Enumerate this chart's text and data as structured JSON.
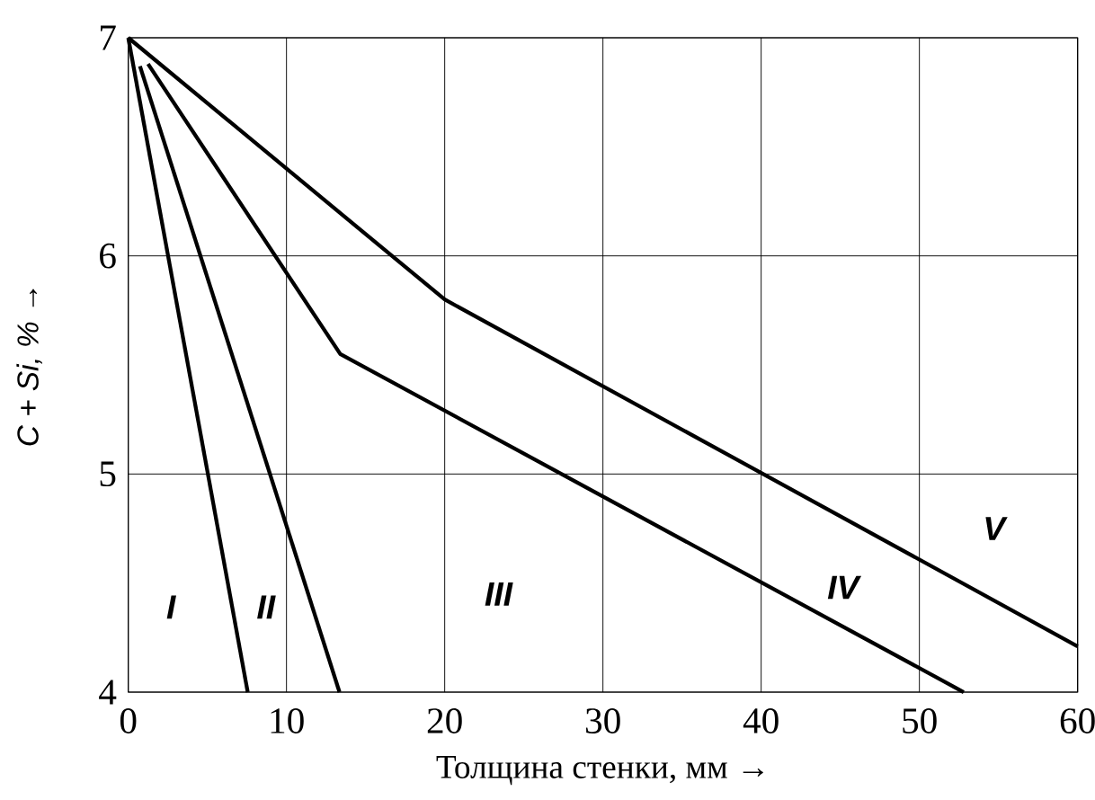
{
  "chart_data": {
    "type": "line",
    "xlabel": "Толщина стенки, мм →",
    "ylabel": "C + Si, % →",
    "xlim": [
      0,
      60
    ],
    "ylim": [
      4,
      7
    ],
    "xticks": [
      0,
      10,
      20,
      30,
      40,
      50,
      60
    ],
    "yticks": [
      4,
      5,
      6,
      7
    ],
    "grid": true,
    "line_style": "solid",
    "series": [
      {
        "color": "#000000",
        "x": [
          0,
          7.55
        ],
        "values": [
          7,
          4
        ]
      },
      {
        "color": "#000000",
        "x": [
          0.74,
          13.35
        ],
        "values": [
          6.87,
          4
        ]
      },
      {
        "color": "#000000",
        "x": [
          1.25,
          13.4,
          52.8
        ],
        "values": [
          6.88,
          5.55,
          4
        ]
      },
      {
        "color": "#000000",
        "x": [
          0,
          20,
          60
        ],
        "values": [
          7,
          5.8,
          4.21
        ]
      }
    ],
    "annotations": [
      "I",
      "II",
      "III",
      "IV",
      "V"
    ]
  }
}
